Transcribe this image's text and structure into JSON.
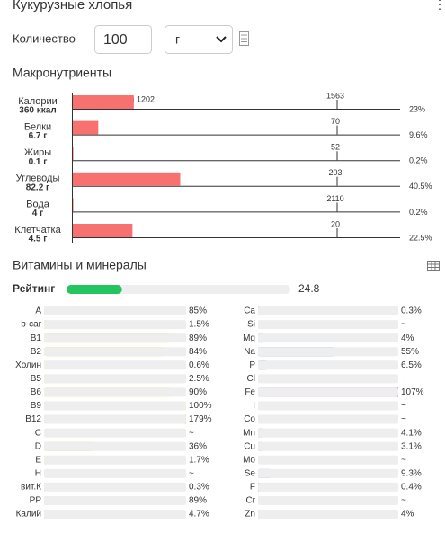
{
  "header": {
    "title": "Кукурузные хлопья"
  },
  "quantity": {
    "label": "Количество",
    "value": "100",
    "unit": "г"
  },
  "macro": {
    "title": "Макронутриенты",
    "min_label": "min 1202",
    "lim": [
      0,
      100
    ],
    "color": "#f87171",
    "rows": [
      {
        "name": "Калории",
        "amount": "360 ккал",
        "target": "1563",
        "value": 23,
        "label": "23%"
      },
      {
        "name": "Белки",
        "amount": "6.7 г",
        "target": "70",
        "value": 9.6,
        "label": "9.6%"
      },
      {
        "name": "Жиры",
        "amount": "0.1 г",
        "target": "52",
        "value": 0.2,
        "label": "0.2%"
      },
      {
        "name": "Углеводы",
        "amount": "82.2 г",
        "target": "203",
        "value": 40.5,
        "label": "40.5%"
      },
      {
        "name": "Вода",
        "amount": "4 г",
        "target": "2110",
        "value": 0.2,
        "label": "0.2%"
      },
      {
        "name": "Клетчатка",
        "amount": "4.5 г",
        "target": "20",
        "value": 22.5,
        "label": "22.5%"
      }
    ]
  },
  "vitamins": {
    "title": "Витамины и минералы",
    "rating_label": "Рейтинг",
    "rating": 24.8,
    "rating_lim": [
      0,
      100
    ],
    "rating_color": "#22c55e",
    "lim": [
      0,
      100
    ],
    "left": [
      {
        "name": "A",
        "value": 85,
        "label": "85%",
        "color": "#f0d800"
      },
      {
        "name": "b-car",
        "value": 1.5,
        "label": "1.5%",
        "color": "#f0d800"
      },
      {
        "name": "B1",
        "value": 89,
        "label": "89%",
        "color": "#f0d800"
      },
      {
        "name": "B2",
        "value": 84,
        "label": "84%",
        "color": "#f0d800"
      },
      {
        "name": "Холин",
        "value": 0.6,
        "label": "0.6%",
        "color": "#f0d800"
      },
      {
        "name": "B5",
        "value": 2.5,
        "label": "2.5%",
        "color": "#f0d800"
      },
      {
        "name": "B6",
        "value": 90,
        "label": "90%",
        "color": "#f0d800"
      },
      {
        "name": "B9",
        "value": 100,
        "label": "100%",
        "color": "#f0d800"
      },
      {
        "name": "B12",
        "value": 179,
        "label": "179%",
        "color": "#f0d800"
      },
      {
        "name": "C",
        "value": null,
        "label": "~",
        "color": "#f0d800"
      },
      {
        "name": "D",
        "value": 36,
        "label": "36%",
        "color": "#f0d800"
      },
      {
        "name": "E",
        "value": 1.7,
        "label": "1.7%",
        "color": "#f0d800"
      },
      {
        "name": "H",
        "value": null,
        "label": "~",
        "color": "#f0d800"
      },
      {
        "name": "вит.К",
        "value": 0.3,
        "label": "0.3%",
        "color": "#f0d800"
      },
      {
        "name": "PP",
        "value": 89,
        "label": "89%",
        "color": "#f0d800"
      },
      {
        "name": "Калий",
        "value": 4.7,
        "label": "4.7%",
        "color": "#3a8fd6"
      }
    ],
    "right": [
      {
        "name": "Ca",
        "value": 0.3,
        "label": "0.3%",
        "color": "#3a8fd6"
      },
      {
        "name": "Si",
        "value": null,
        "label": "~",
        "color": "#3a8fd6"
      },
      {
        "name": "Mg",
        "value": 4,
        "label": "4%",
        "color": "#3a8fd6"
      },
      {
        "name": "Na",
        "value": 55,
        "label": "55%",
        "color": "#3a8fd6"
      },
      {
        "name": "P",
        "value": 6.5,
        "label": "6.5%",
        "color": "#3a8fd6"
      },
      {
        "name": "Cl",
        "value": null,
        "label": "~",
        "color": "#3a8fd6"
      },
      {
        "name": "Fe",
        "value": 107,
        "label": "107%",
        "color": "#9b59b6"
      },
      {
        "name": "I",
        "value": null,
        "label": "~",
        "color": "#9b59b6"
      },
      {
        "name": "Co",
        "value": null,
        "label": "~",
        "color": "#9b59b6"
      },
      {
        "name": "Mn",
        "value": 4.1,
        "label": "4.1%",
        "color": "#9b59b6"
      },
      {
        "name": "Cu",
        "value": 3.1,
        "label": "3.1%",
        "color": "#9b59b6"
      },
      {
        "name": "Mo",
        "value": null,
        "label": "~",
        "color": "#9b59b6"
      },
      {
        "name": "Se",
        "value": 9.3,
        "label": "9.3%",
        "color": "#9b59b6"
      },
      {
        "name": "F",
        "value": 0.4,
        "label": "0.4%",
        "color": "#9b59b6"
      },
      {
        "name": "Cr",
        "value": null,
        "label": "~",
        "color": "#9b59b6"
      },
      {
        "name": "Zn",
        "value": 4,
        "label": "4%",
        "color": "#9b59b6"
      }
    ]
  }
}
